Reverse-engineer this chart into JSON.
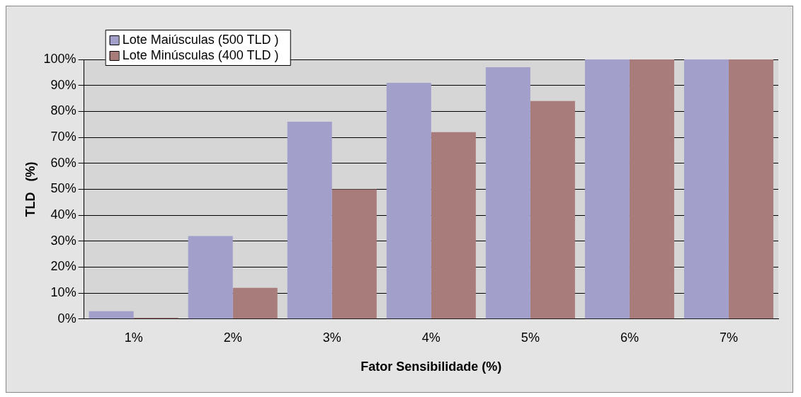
{
  "chart_data": {
    "type": "bar",
    "xlabel": "Fator Sensibilidade (%)",
    "ylabel": "TLD   (%)",
    "categories": [
      "1%",
      "2%",
      "3%",
      "4%",
      "5%",
      "6%",
      "7%"
    ],
    "series": [
      {
        "name": "Lote Maiúsculas (500 TLD )",
        "color": "#a29fcb",
        "values": [
          3,
          32,
          76,
          91,
          97,
          100,
          100
        ]
      },
      {
        "name": "Lote Minúsculas (400 TLD )",
        "color": "#a87c7a",
        "values": [
          0.5,
          12,
          50,
          72,
          84,
          100,
          100
        ]
      }
    ],
    "ylim": [
      0,
      100
    ],
    "yticks": [
      {
        "value": 0,
        "label": "0%"
      },
      {
        "value": 10,
        "label": "10%"
      },
      {
        "value": 20,
        "label": "20%"
      },
      {
        "value": 30,
        "label": "30%"
      },
      {
        "value": 40,
        "label": "40%"
      },
      {
        "value": 50,
        "label": "50%"
      },
      {
        "value": 60,
        "label": "60%"
      },
      {
        "value": 70,
        "label": "70%"
      },
      {
        "value": 80,
        "label": "80%"
      },
      {
        "value": 90,
        "label": "90%"
      },
      {
        "value": 100,
        "label": "100%"
      }
    ],
    "grid": "y",
    "legend": "top left"
  }
}
